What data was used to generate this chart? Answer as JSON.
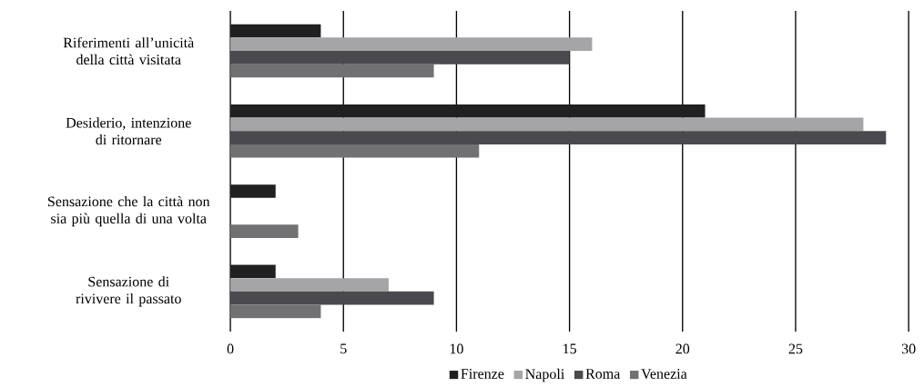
{
  "chart_data": {
    "type": "bar",
    "orientation": "horizontal",
    "categories": [
      "Riferimenti all’unicità della città visitata",
      "Desiderio, intenzione di ritornare",
      "Sensazione che la città non sia più quella di una volta",
      "Sensazione di rivivere il passato"
    ],
    "series": [
      {
        "name": "Firenze",
        "color": "#202020",
        "values": [
          4,
          21,
          2,
          2
        ]
      },
      {
        "name": "Napoli",
        "color": "#a5a5a7",
        "values": [
          16,
          28,
          0,
          7
        ]
      },
      {
        "name": "Roma",
        "color": "#4a4a4e",
        "values": [
          15,
          29,
          0,
          9
        ]
      },
      {
        "name": "Venezia",
        "color": "#717072",
        "values": [
          9,
          11,
          3,
          4
        ]
      }
    ],
    "xlim": [
      0,
      30
    ],
    "xticks": [
      0,
      5,
      10,
      15,
      20,
      25,
      30
    ],
    "grid": "x",
    "legend": "bottom"
  }
}
